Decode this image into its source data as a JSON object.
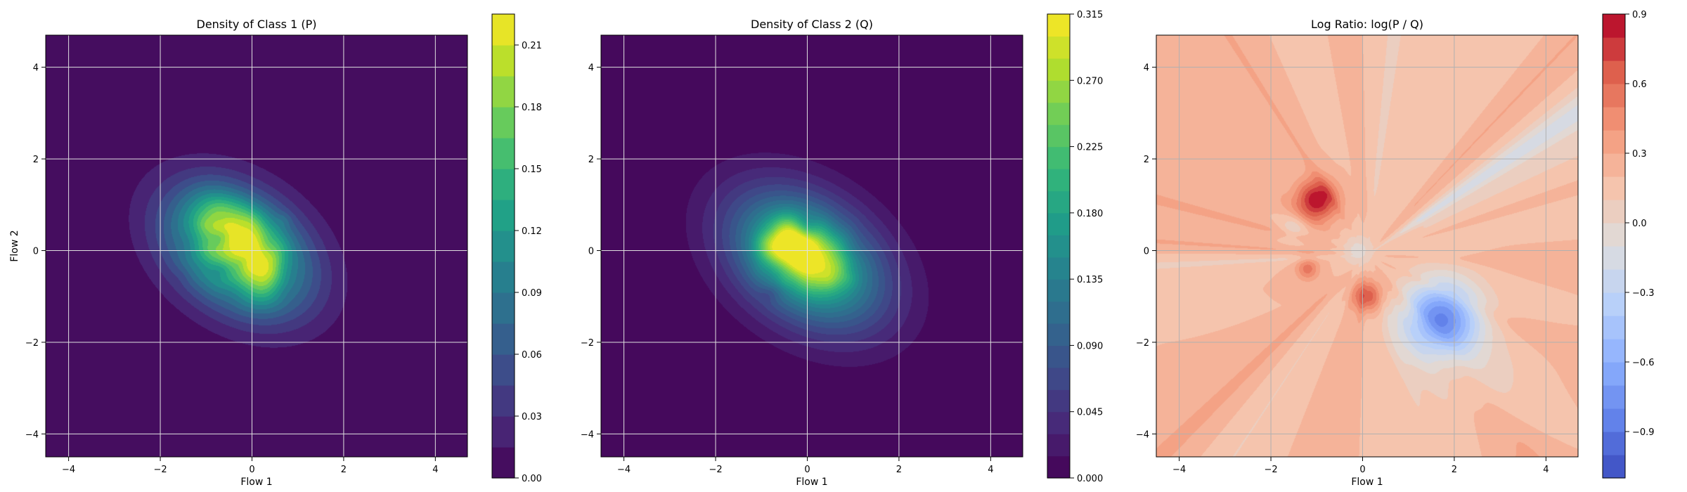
{
  "chart_data": [
    {
      "type": "contour",
      "title": "Density of Class 1 (P)",
      "xlabel": "Flow 1",
      "ylabel": "Flow 2",
      "xlim": [
        -4.5,
        4.7
      ],
      "ylim": [
        -4.5,
        4.7
      ],
      "xticks": [
        -4,
        -2,
        0,
        2,
        4
      ],
      "yticks": [
        -4,
        -2,
        0,
        2,
        4
      ],
      "grid": true,
      "colormap": "viridis",
      "background_color": "#440154",
      "distribution": {
        "center": [
          -0.3,
          0.0
        ],
        "sx": 1.15,
        "sy": 0.8,
        "angle_deg": 35,
        "peak": 0.2,
        "hotspots": [
          [
            -0.9,
            1.0,
            0.19
          ],
          [
            -0.1,
            0.4,
            0.2
          ],
          [
            0.2,
            -0.8,
            0.19
          ]
        ]
      },
      "colorbar": {
        "min": 0.0,
        "max": 0.225,
        "levels": 15,
        "ticks": [
          0.0,
          0.03,
          0.06,
          0.09,
          0.12,
          0.15,
          0.18,
          0.21
        ],
        "tick_labels": [
          "0.00",
          "0.03",
          "0.06",
          "0.09",
          "0.12",
          "0.15",
          "0.18",
          "0.21"
        ]
      }
    },
    {
      "type": "contour",
      "title": "Density of Class 2 (Q)",
      "xlabel": "Flow 1",
      "ylabel": "",
      "xlim": [
        -4.5,
        4.7
      ],
      "ylim": [
        -4.5,
        4.7
      ],
      "xticks": [
        -4,
        -2,
        0,
        2,
        4
      ],
      "yticks": [
        -4,
        -2,
        0,
        2,
        4
      ],
      "grid": true,
      "colormap": "viridis",
      "background_color": "#440154",
      "distribution": {
        "center": [
          0.0,
          -0.2
        ],
        "sx": 1.25,
        "sy": 0.85,
        "angle_deg": 35,
        "peak": 0.23,
        "hotspots": [
          [
            -0.4,
            0.2,
            0.31
          ],
          [
            0.3,
            -0.4,
            0.2
          ]
        ]
      },
      "colorbar": {
        "min": 0.0,
        "max": 0.315,
        "levels": 21,
        "ticks": [
          0.0,
          0.045,
          0.09,
          0.135,
          0.18,
          0.225,
          0.27,
          0.315
        ],
        "tick_labels": [
          "0.000",
          "0.045",
          "0.090",
          "0.135",
          "0.180",
          "0.225",
          "0.270",
          "0.315"
        ]
      }
    },
    {
      "type": "contour",
      "title": "Log Ratio: log(P / Q)",
      "xlabel": "Flow 1",
      "ylabel": "",
      "xlim": [
        -4.5,
        4.7
      ],
      "ylim": [
        -4.5,
        4.7
      ],
      "xticks": [
        -4,
        -2,
        0,
        2,
        4
      ],
      "yticks": [
        -4,
        -2,
        0,
        2,
        4
      ],
      "grid": true,
      "colormap": "coolwarm",
      "background_value": 0.2,
      "regions": [
        [
          -1.0,
          1.1,
          0.45,
          0.7
        ],
        [
          0.1,
          -1.0,
          0.35,
          0.5
        ],
        [
          -1.2,
          -0.4,
          0.25,
          0.35
        ],
        [
          1.7,
          -1.5,
          0.85,
          -1.0
        ],
        [
          -0.1,
          0.0,
          0.35,
          -0.25
        ],
        [
          -1.5,
          0.5,
          0.3,
          -0.2
        ],
        [
          2.5,
          -2.8,
          1.2,
          -0.15
        ]
      ],
      "colorbar": {
        "min": -1.1,
        "max": 0.9,
        "levels": 20,
        "ticks": [
          -0.9,
          -0.6,
          -0.3,
          0.0,
          0.3,
          0.6,
          0.9
        ],
        "tick_labels": [
          "−0.9",
          "−0.6",
          "−0.3",
          "0.0",
          "0.3",
          "0.6",
          "0.9"
        ]
      }
    }
  ]
}
